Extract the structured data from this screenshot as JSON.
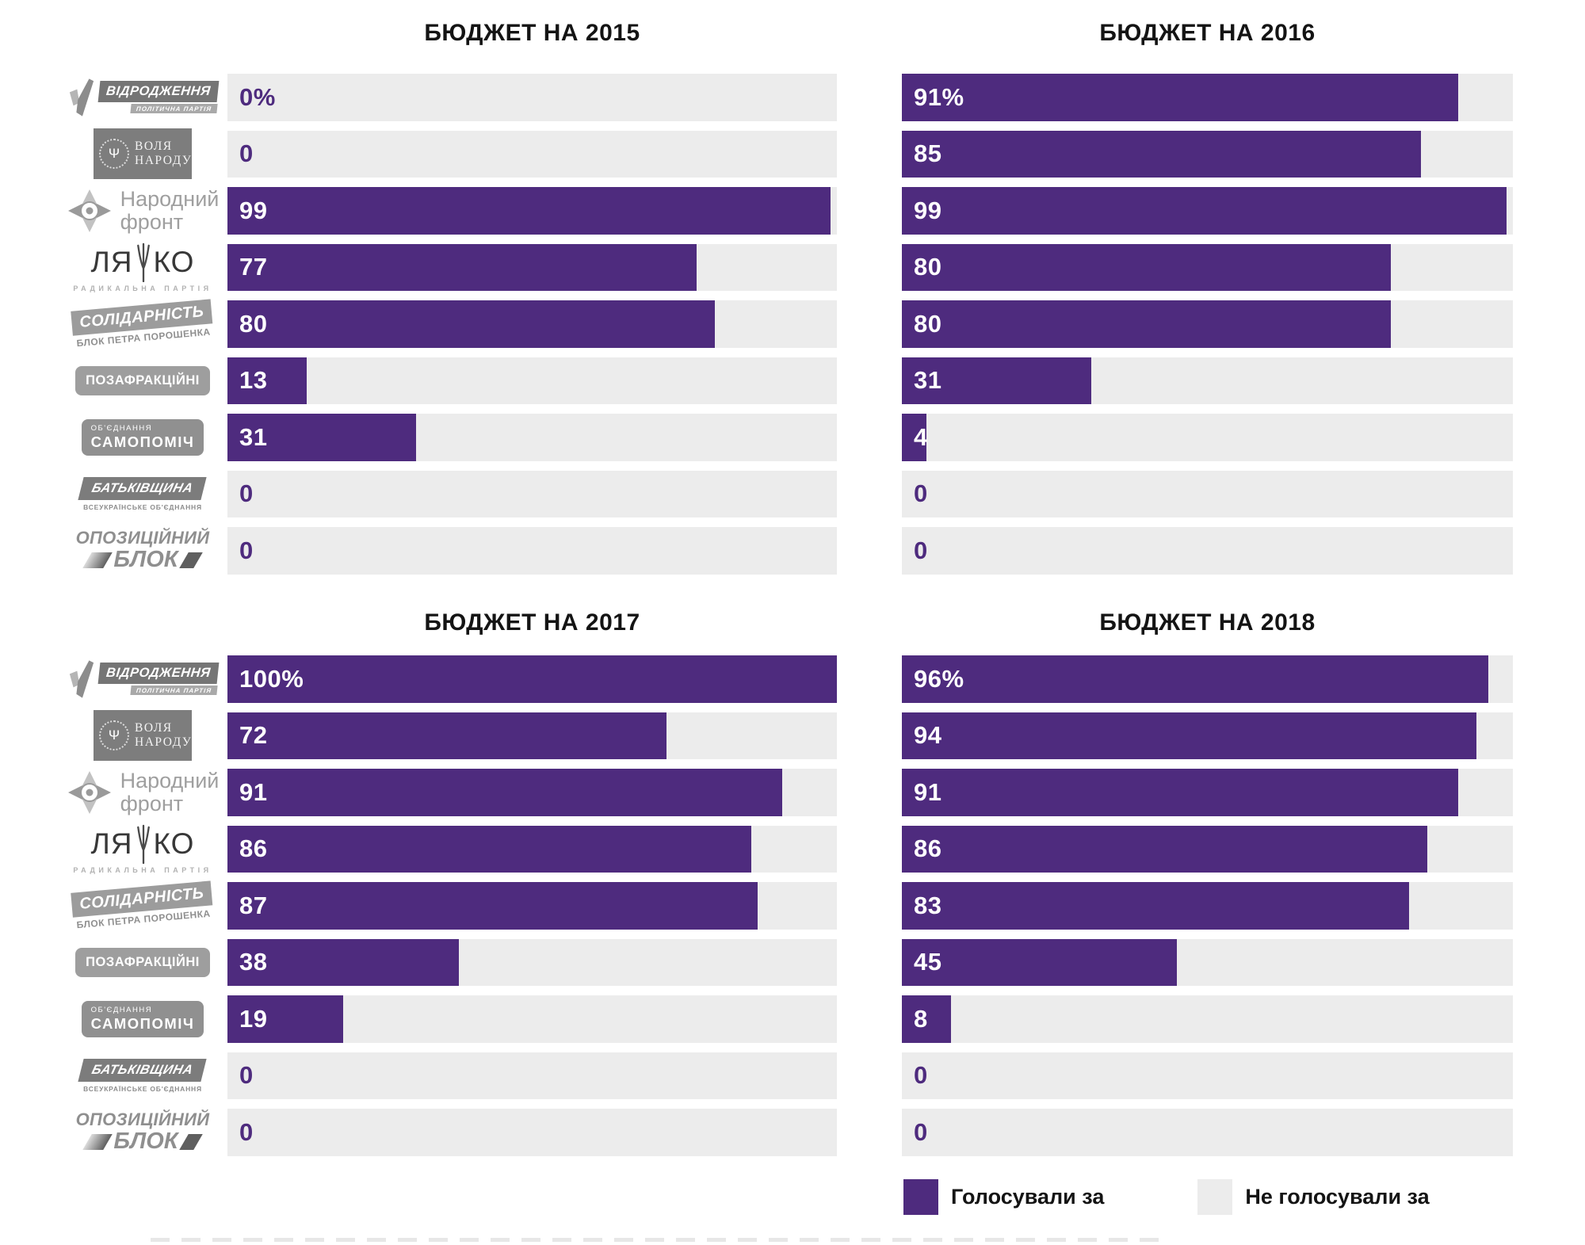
{
  "colors": {
    "bar_voted": "#4e2b7e",
    "bar_not_voted": "#ececec",
    "value_on_bar": "#ffffff",
    "value_on_track": "#4e2b7e",
    "title_text": "#141414",
    "logo_gray": "#8f8f8f"
  },
  "icons": {
    "tryzub": "Ψ"
  },
  "parties": [
    {
      "name": "Відродження",
      "logo_main": "ВІДРОДЖЕННЯ",
      "logo_sub": "ПОЛІТИЧНА ПАРТІЯ"
    },
    {
      "name": "Воля Народу",
      "logo_line1": "ВОЛЯ",
      "logo_line2": "НАРОДУ"
    },
    {
      "name": "Народний фронт",
      "logo_line1": "Народний",
      "logo_line2": "фронт"
    },
    {
      "name": "Ляшко — Радикальна партія",
      "logo_left": "ЛЯ",
      "logo_right": "КО",
      "logo_sub": "РАДИКАЛЬНА ПАРТІЯ"
    },
    {
      "name": "Солідарність — Блок Петра Порошенка",
      "logo_main": "СОЛІДАРНІСТЬ",
      "logo_sub": "БЛОК ПЕТРА ПОРОШЕНКА"
    },
    {
      "name": "Позафракційні",
      "logo_main": "ПОЗАФРАКЦІЙНІ"
    },
    {
      "name": "Об'єднання Самопоміч",
      "logo_top": "ОБ'ЄДНАННЯ",
      "logo_main": "САМОПОМІЧ"
    },
    {
      "name": "Батьківщина",
      "logo_main": "БАТЬКІВЩИНА",
      "logo_sub": "ВСЕУКРАЇНСЬКЕ ОБ'ЄДНАННЯ"
    },
    {
      "name": "Опозиційний блок",
      "logo_line1": "ОПОЗИЦІЙНИЙ",
      "logo_line2": "БЛОК"
    }
  ],
  "panels": [
    {
      "title": "БЮДЖЕТ НА 2015",
      "rows": [
        {
          "value": 0,
          "label": "0%"
        },
        {
          "value": 0,
          "label": "0"
        },
        {
          "value": 99,
          "label": "99"
        },
        {
          "value": 77,
          "label": "77"
        },
        {
          "value": 80,
          "label": "80"
        },
        {
          "value": 13,
          "label": "13"
        },
        {
          "value": 31,
          "label": "31"
        },
        {
          "value": 0,
          "label": "0"
        },
        {
          "value": 0,
          "label": "0"
        }
      ]
    },
    {
      "title": "БЮДЖЕТ НА 2016",
      "rows": [
        {
          "value": 91,
          "label": "91%"
        },
        {
          "value": 85,
          "label": "85"
        },
        {
          "value": 99,
          "label": "99"
        },
        {
          "value": 80,
          "label": "80"
        },
        {
          "value": 80,
          "label": "80"
        },
        {
          "value": 31,
          "label": "31"
        },
        {
          "value": 4,
          "label": "4"
        },
        {
          "value": 0,
          "label": "0"
        },
        {
          "value": 0,
          "label": "0"
        }
      ]
    },
    {
      "title": "БЮДЖЕТ НА 2017",
      "rows": [
        {
          "value": 100,
          "label": "100%"
        },
        {
          "value": 72,
          "label": "72"
        },
        {
          "value": 91,
          "label": "91"
        },
        {
          "value": 86,
          "label": "86"
        },
        {
          "value": 87,
          "label": "87"
        },
        {
          "value": 38,
          "label": "38"
        },
        {
          "value": 19,
          "label": "19"
        },
        {
          "value": 0,
          "label": "0"
        },
        {
          "value": 0,
          "label": "0"
        }
      ]
    },
    {
      "title": "БЮДЖЕТ НА 2018",
      "rows": [
        {
          "value": 96,
          "label": "96%"
        },
        {
          "value": 94,
          "label": "94"
        },
        {
          "value": 91,
          "label": "91"
        },
        {
          "value": 86,
          "label": "86"
        },
        {
          "value": 83,
          "label": "83"
        },
        {
          "value": 45,
          "label": "45"
        },
        {
          "value": 8,
          "label": "8"
        },
        {
          "value": 0,
          "label": "0"
        },
        {
          "value": 0,
          "label": "0"
        }
      ]
    }
  ],
  "legend": {
    "voted": "Голосували за",
    "not_voted": "Не голосували за"
  },
  "chart_data": {
    "type": "bar",
    "orientation": "horizontal",
    "unit": "%",
    "xlim": [
      0,
      100
    ],
    "grid": false,
    "legend_entries": [
      "Голосували за",
      "Не голосували за"
    ],
    "legend_position": "bottom-right",
    "categories": [
      "Відродження",
      "Воля Народу",
      "Народний фронт",
      "Ляшко — Радикальна партія",
      "Солідарність — Блок Петра Порошенка",
      "Позафракційні",
      "Об'єднання Самопоміч",
      "Батьківщина",
      "Опозиційний блок"
    ],
    "series": [
      {
        "name": "БЮДЖЕТ НА 2015",
        "values": [
          0,
          0,
          99,
          77,
          80,
          13,
          31,
          0,
          0
        ]
      },
      {
        "name": "БЮДЖЕТ НА 2016",
        "values": [
          91,
          85,
          99,
          80,
          80,
          31,
          4,
          0,
          0
        ]
      },
      {
        "name": "БЮДЖЕТ НА 2017",
        "values": [
          100,
          72,
          91,
          86,
          87,
          38,
          19,
          0,
          0
        ]
      },
      {
        "name": "БЮДЖЕТ НА 2018",
        "values": [
          96,
          94,
          91,
          86,
          83,
          45,
          8,
          0,
          0
        ]
      }
    ]
  }
}
